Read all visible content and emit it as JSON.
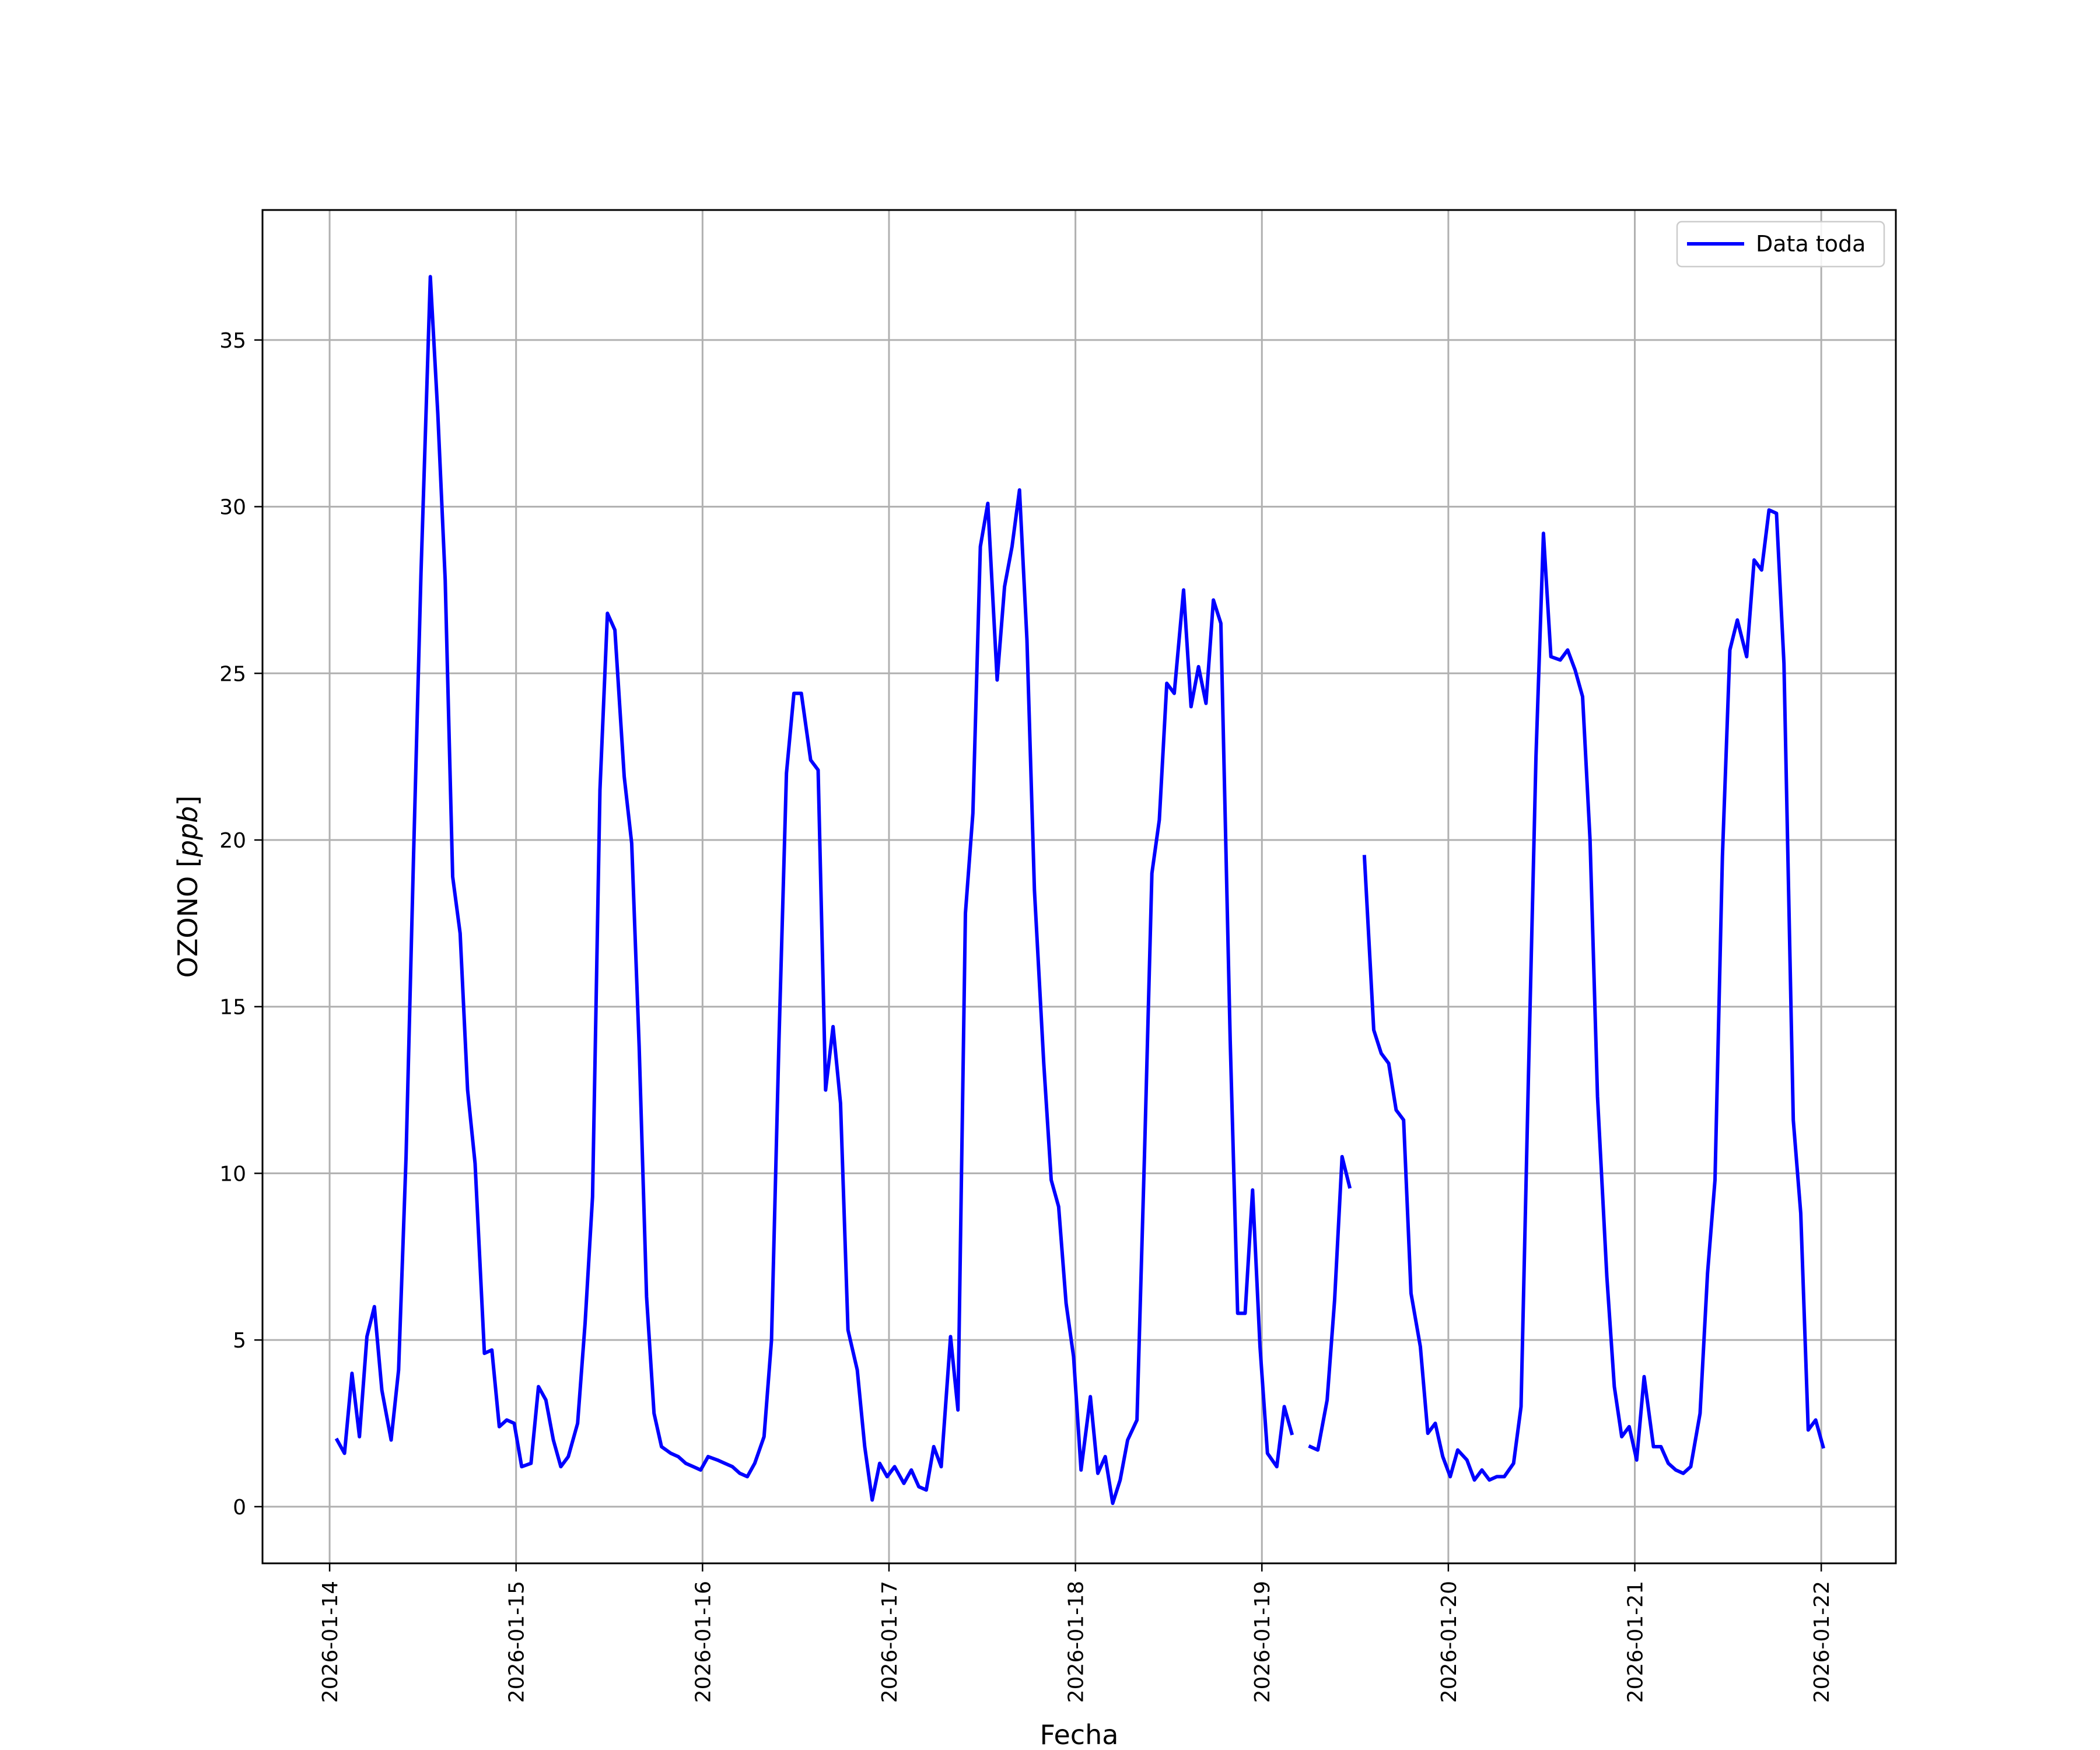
{
  "chart_data": {
    "type": "line",
    "title": "",
    "xlabel": "Fecha",
    "ylabel": "OZONO [ppb]",
    "ylabel_main": "OZONO [",
    "ylabel_unit": "ppb",
    "ylabel_close": "]",
    "x_ticks": [
      "2026-01-14",
      "2026-01-15",
      "2026-01-16",
      "2026-01-17",
      "2026-01-18",
      "2026-01-19",
      "2026-01-20",
      "2026-01-21",
      "2026-01-22"
    ],
    "y_ticks": [
      0,
      5,
      10,
      15,
      20,
      25,
      30,
      35
    ],
    "xlim_days": [
      -0.36,
      8.4
    ],
    "ylim": [
      -1.7,
      38.9
    ],
    "grid": true,
    "legend_placement": "top-right",
    "series": [
      {
        "name": "Data toda",
        "color": "#0000ff",
        "segments": [
          [
            [
              0.04,
              2.0
            ],
            [
              0.08,
              1.6
            ],
            [
              0.12,
              4.0
            ],
            [
              0.16,
              2.1
            ],
            [
              0.2,
              5.1
            ],
            [
              0.24,
              6.0
            ],
            [
              0.28,
              3.5
            ],
            [
              0.33,
              2.0
            ],
            [
              0.37,
              4.1
            ],
            [
              0.41,
              10.5
            ],
            [
              0.45,
              19.5
            ],
            [
              0.49,
              28.0
            ],
            [
              0.54,
              36.9
            ],
            [
              0.58,
              32.8
            ],
            [
              0.62,
              27.8
            ],
            [
              0.66,
              18.9
            ],
            [
              0.7,
              17.2
            ],
            [
              0.74,
              12.5
            ],
            [
              0.78,
              10.3
            ],
            [
              0.83,
              4.6
            ],
            [
              0.87,
              4.7
            ],
            [
              0.91,
              2.4
            ],
            [
              0.95,
              2.6
            ],
            [
              0.99,
              2.5
            ],
            [
              1.03,
              1.2
            ],
            [
              1.08,
              1.3
            ],
            [
              1.12,
              3.6
            ],
            [
              1.16,
              3.2
            ],
            [
              1.2,
              2.0
            ],
            [
              1.24,
              1.2
            ],
            [
              1.28,
              1.5
            ],
            [
              1.33,
              2.5
            ],
            [
              1.37,
              5.5
            ],
            [
              1.41,
              9.3
            ],
            [
              1.45,
              21.5
            ],
            [
              1.49,
              26.8
            ],
            [
              1.53,
              26.3
            ],
            [
              1.58,
              21.9
            ],
            [
              1.62,
              19.9
            ],
            [
              1.66,
              13.8
            ],
            [
              1.7,
              6.3
            ],
            [
              1.74,
              2.8
            ],
            [
              1.78,
              1.8
            ],
            [
              1.83,
              1.6
            ],
            [
              1.87,
              1.5
            ],
            [
              1.91,
              1.3
            ],
            [
              1.95,
              1.2
            ],
            [
              1.99,
              1.1
            ],
            [
              2.03,
              1.5
            ],
            [
              2.08,
              1.4
            ],
            [
              2.12,
              1.3
            ],
            [
              2.16,
              1.2
            ],
            [
              2.2,
              1.0
            ],
            [
              2.24,
              0.9
            ],
            [
              2.28,
              1.3
            ],
            [
              2.33,
              2.1
            ],
            [
              2.37,
              5.0
            ],
            [
              2.41,
              14.0
            ],
            [
              2.45,
              22.0
            ],
            [
              2.49,
              24.4
            ],
            [
              2.53,
              24.4
            ],
            [
              2.58,
              22.4
            ],
            [
              2.62,
              22.1
            ],
            [
              2.66,
              12.5
            ],
            [
              2.7,
              14.4
            ],
            [
              2.74,
              12.1
            ],
            [
              2.78,
              5.3
            ],
            [
              2.83,
              4.1
            ],
            [
              2.87,
              1.8
            ],
            [
              2.91,
              0.2
            ],
            [
              2.95,
              1.3
            ],
            [
              2.99,
              0.9
            ],
            [
              3.03,
              1.2
            ],
            [
              3.08,
              0.7
            ],
            [
              3.12,
              1.1
            ],
            [
              3.16,
              0.6
            ],
            [
              3.2,
              0.5
            ],
            [
              3.24,
              1.8
            ],
            [
              3.28,
              1.2
            ],
            [
              3.33,
              5.1
            ],
            [
              3.37,
              2.9
            ],
            [
              3.41,
              17.8
            ],
            [
              3.45,
              20.8
            ],
            [
              3.49,
              28.8
            ],
            [
              3.53,
              30.1
            ],
            [
              3.58,
              24.8
            ],
            [
              3.62,
              27.6
            ],
            [
              3.66,
              28.8
            ],
            [
              3.7,
              30.5
            ],
            [
              3.74,
              26.0
            ],
            [
              3.78,
              18.5
            ],
            [
              3.83,
              13.3
            ],
            [
              3.87,
              9.8
            ],
            [
              3.91,
              9.0
            ],
            [
              3.95,
              6.1
            ],
            [
              3.99,
              4.5
            ],
            [
              4.03,
              1.1
            ],
            [
              4.08,
              3.3
            ],
            [
              4.12,
              1.0
            ],
            [
              4.16,
              1.5
            ],
            [
              4.2,
              0.1
            ],
            [
              4.24,
              0.8
            ],
            [
              4.28,
              2.0
            ],
            [
              4.33,
              2.6
            ],
            [
              4.37,
              10.5
            ],
            [
              4.41,
              19.0
            ],
            [
              4.45,
              20.6
            ],
            [
              4.49,
              24.7
            ],
            [
              4.53,
              24.4
            ],
            [
              4.58,
              27.5
            ],
            [
              4.62,
              24.0
            ],
            [
              4.66,
              25.2
            ],
            [
              4.7,
              24.1
            ],
            [
              4.74,
              27.2
            ],
            [
              4.78,
              26.5
            ],
            [
              4.83,
              14.0
            ],
            [
              4.87,
              5.8
            ],
            [
              4.91,
              5.8
            ],
            [
              4.95,
              9.5
            ],
            [
              4.99,
              4.8
            ],
            [
              5.03,
              1.6
            ],
            [
              5.08,
              1.2
            ],
            [
              5.12,
              3.0
            ],
            [
              5.16,
              2.2
            ]
          ],
          [
            [
              5.26,
              1.8
            ],
            [
              5.3,
              1.7
            ],
            [
              5.35,
              3.2
            ],
            [
              5.39,
              6.2
            ],
            [
              5.43,
              10.5
            ],
            [
              5.47,
              9.6
            ]
          ],
          [
            [
              5.55,
              19.5
            ],
            [
              5.6,
              14.3
            ],
            [
              5.64,
              13.6
            ],
            [
              5.68,
              13.3
            ],
            [
              5.72,
              11.9
            ],
            [
              5.76,
              11.6
            ],
            [
              5.8,
              6.4
            ],
            [
              5.85,
              4.8
            ],
            [
              5.89,
              2.2
            ],
            [
              5.93,
              2.5
            ],
            [
              5.97,
              1.5
            ],
            [
              6.01,
              0.9
            ],
            [
              6.05,
              1.7
            ],
            [
              6.1,
              1.4
            ],
            [
              6.14,
              0.8
            ],
            [
              6.18,
              1.1
            ],
            [
              6.22,
              0.8
            ],
            [
              6.26,
              0.9
            ],
            [
              6.3,
              0.9
            ],
            [
              6.35,
              1.3
            ],
            [
              6.39,
              3.0
            ],
            [
              6.43,
              13.0
            ],
            [
              6.47,
              22.5
            ],
            [
              6.51,
              29.2
            ],
            [
              6.55,
              25.5
            ],
            [
              6.6,
              25.4
            ],
            [
              6.64,
              25.7
            ],
            [
              6.68,
              25.1
            ],
            [
              6.72,
              24.3
            ],
            [
              6.76,
              20.0
            ],
            [
              6.8,
              12.3
            ],
            [
              6.85,
              6.9
            ],
            [
              6.89,
              3.6
            ],
            [
              6.93,
              2.1
            ],
            [
              6.97,
              2.4
            ],
            [
              7.01,
              1.4
            ],
            [
              7.05,
              3.9
            ],
            [
              7.1,
              1.8
            ],
            [
              7.14,
              1.8
            ],
            [
              7.18,
              1.3
            ],
            [
              7.22,
              1.1
            ],
            [
              7.26,
              1.0
            ],
            [
              7.3,
              1.2
            ],
            [
              7.35,
              2.8
            ],
            [
              7.39,
              7.0
            ],
            [
              7.43,
              9.8
            ],
            [
              7.47,
              19.5
            ],
            [
              7.51,
              25.7
            ],
            [
              7.55,
              26.6
            ],
            [
              7.6,
              25.5
            ],
            [
              7.64,
              28.4
            ],
            [
              7.68,
              28.1
            ],
            [
              7.72,
              29.9
            ],
            [
              7.76,
              29.8
            ],
            [
              7.8,
              25.3
            ],
            [
              7.85,
              11.6
            ],
            [
              7.89,
              8.8
            ],
            [
              7.93,
              2.3
            ],
            [
              7.97,
              2.6
            ],
            [
              8.01,
              1.8
            ]
          ]
        ]
      }
    ]
  }
}
